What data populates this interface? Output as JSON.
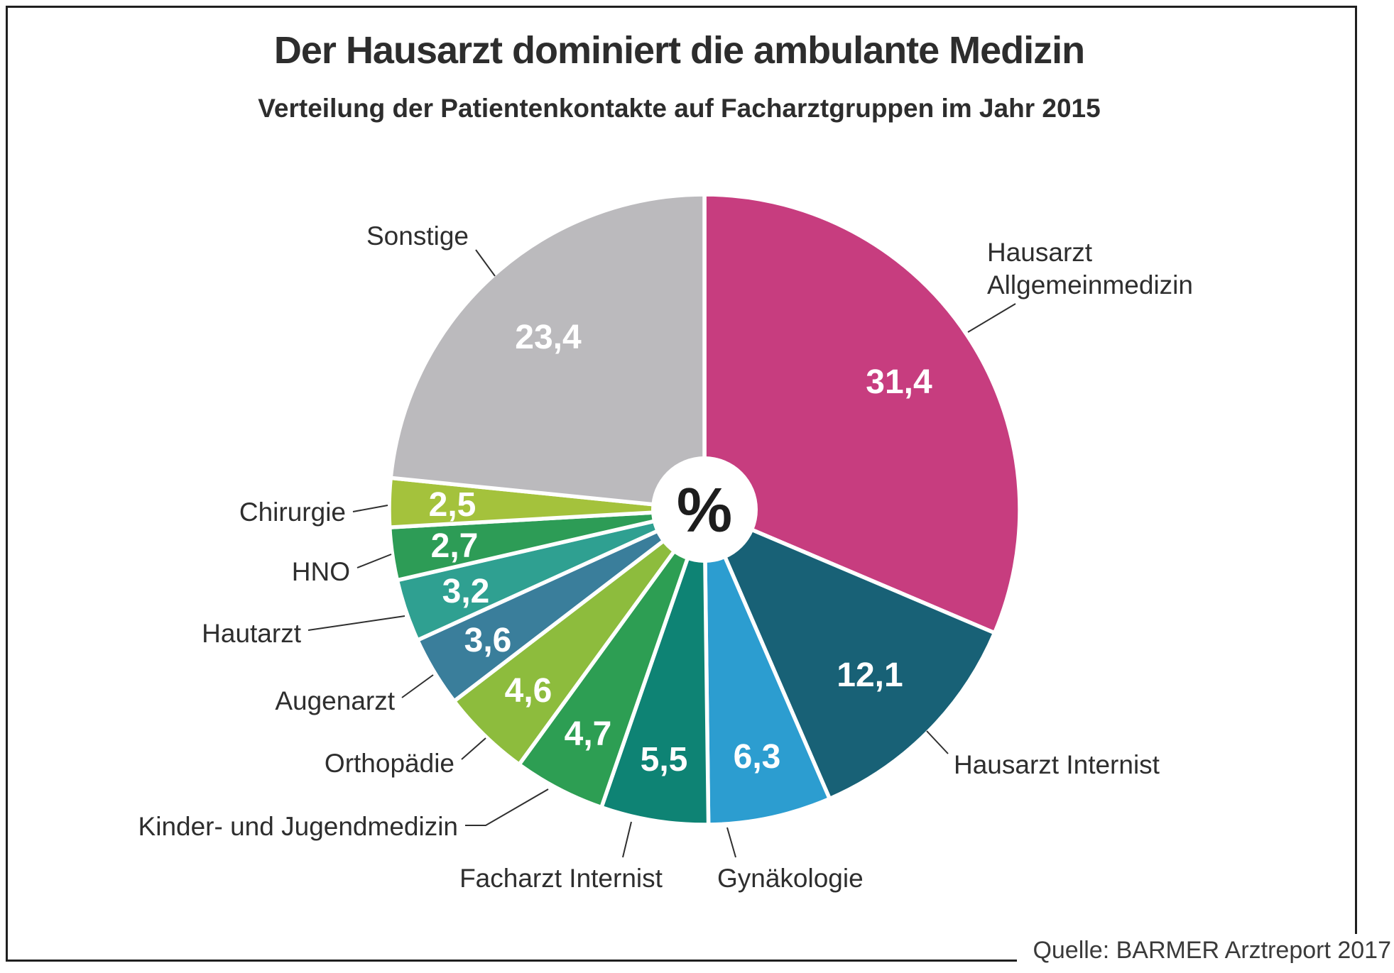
{
  "chart_data": {
    "type": "pie",
    "title": "Der Hausarzt dominiert die ambulante Medizin",
    "subtitle": "Verteilung der Patientenkontakte auf Facharztgruppen im Jahr 2015",
    "unit": "%",
    "center_label": "%",
    "source": "Quelle: BARMER Arztreport 2017",
    "start_angle_deg": 0,
    "direction": "clockwise",
    "slices": [
      {
        "label": "Hausarzt Allgemeinmedizin",
        "label_lines": [
          "Hausarzt",
          "Allgemeinmedizin"
        ],
        "value": 31.4,
        "display": "31,4",
        "color": "#C73D7F"
      },
      {
        "label": "Hausarzt Internist",
        "value": 12.1,
        "display": "12,1",
        "color": "#186176"
      },
      {
        "label": "Gynäkologie",
        "value": 6.3,
        "display": "6,3",
        "color": "#2C9DD0"
      },
      {
        "label": "Facharzt Internist",
        "value": 5.5,
        "display": "5,5",
        "color": "#0E8374"
      },
      {
        "label": "Kinder- und Jugendmedizin",
        "value": 4.7,
        "display": "4,7",
        "color": "#2D9E53"
      },
      {
        "label": "Orthopädie",
        "value": 4.6,
        "display": "4,6",
        "color": "#8DBC3D"
      },
      {
        "label": "Augenarzt",
        "value": 3.6,
        "display": "3,6",
        "color": "#3A7E9B"
      },
      {
        "label": "Hautarzt",
        "value": 3.2,
        "display": "3,2",
        "color": "#2FA091"
      },
      {
        "label": "HNO",
        "value": 2.7,
        "display": "2,7",
        "color": "#2D9C56"
      },
      {
        "label": "Chirurgie",
        "value": 2.5,
        "display": "2,5",
        "color": "#A4C23C"
      },
      {
        "label": "Sonstige",
        "value": 23.4,
        "display": "23,4",
        "color": "#BBBABD"
      }
    ]
  }
}
